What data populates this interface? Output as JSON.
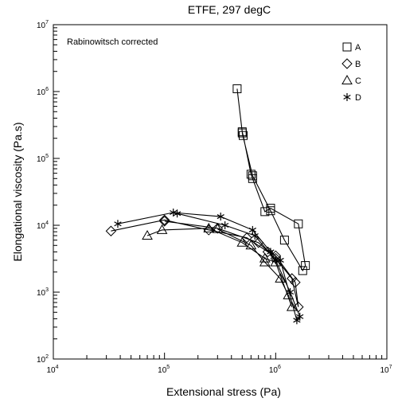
{
  "chart_data": {
    "type": "scatter",
    "title": "ETFE, 297 degC",
    "annotation": "Rabinowitsch corrected",
    "xlabel": "Extensional stress (Pa)",
    "ylabel": "Elongational viscosity (Pa.s)",
    "xscale": "log",
    "yscale": "log",
    "xlim": [
      10000,
      10000000
    ],
    "ylim": [
      100,
      10000000
    ],
    "x_ticks": [
      {
        "base": "10",
        "exp": "4"
      },
      {
        "base": "10",
        "exp": "5"
      },
      {
        "base": "10",
        "exp": "6"
      },
      {
        "base": "10",
        "exp": "7"
      }
    ],
    "y_ticks": [
      {
        "base": "10",
        "exp": "2"
      },
      {
        "base": "10",
        "exp": "3"
      },
      {
        "base": "10",
        "exp": "4"
      },
      {
        "base": "10",
        "exp": "5"
      },
      {
        "base": "10",
        "exp": "6"
      },
      {
        "base": "10",
        "exp": "7"
      }
    ],
    "grid": false,
    "legend_position": "top-right",
    "series": [
      {
        "name": "A",
        "marker": "square",
        "points": [
          [
            450000,
            1100000
          ],
          [
            500000,
            250000
          ],
          [
            510000,
            220000
          ],
          [
            600000,
            58000
          ],
          [
            620000,
            50000
          ],
          [
            800000,
            16000
          ],
          [
            900000,
            18000
          ],
          [
            1600000,
            10500
          ],
          [
            1850000,
            2500
          ],
          [
            1750000,
            2100
          ],
          [
            1200000,
            6000
          ],
          [
            900000,
            16500
          ],
          [
            620000,
            55000
          ],
          [
            500000,
            240000
          ]
        ]
      },
      {
        "name": "B",
        "marker": "diamond",
        "points": [
          [
            33000,
            8200
          ],
          [
            100000,
            12000
          ],
          [
            250000,
            8500
          ],
          [
            550000,
            6500
          ],
          [
            850000,
            4000
          ],
          [
            1000000,
            3500
          ],
          [
            1500000,
            1400
          ],
          [
            1600000,
            600
          ],
          [
            1400000,
            1600
          ],
          [
            1000000,
            3200
          ],
          [
            700000,
            5500
          ],
          [
            300000,
            9000
          ],
          [
            100000,
            11500
          ]
        ]
      },
      {
        "name": "C",
        "marker": "triangle",
        "points": [
          [
            70000,
            7000
          ],
          [
            95000,
            8500
          ],
          [
            250000,
            9000
          ],
          [
            500000,
            5500
          ],
          [
            800000,
            3200
          ],
          [
            1000000,
            2800
          ],
          [
            1400000,
            600
          ],
          [
            1300000,
            900
          ],
          [
            1100000,
            1600
          ],
          [
            800000,
            2800
          ],
          [
            600000,
            5000
          ],
          [
            300000,
            8800
          ]
        ]
      },
      {
        "name": "D",
        "marker": "star",
        "points": [
          [
            38000,
            10500
          ],
          [
            120000,
            15500
          ],
          [
            320000,
            13500
          ],
          [
            620000,
            8500
          ],
          [
            900000,
            4000
          ],
          [
            1100000,
            3000
          ],
          [
            1550000,
            380
          ],
          [
            1650000,
            430
          ],
          [
            1350000,
            1000
          ],
          [
            1000000,
            3000
          ],
          [
            650000,
            7000
          ],
          [
            350000,
            10000
          ],
          [
            130000,
            15000
          ]
        ]
      }
    ]
  }
}
